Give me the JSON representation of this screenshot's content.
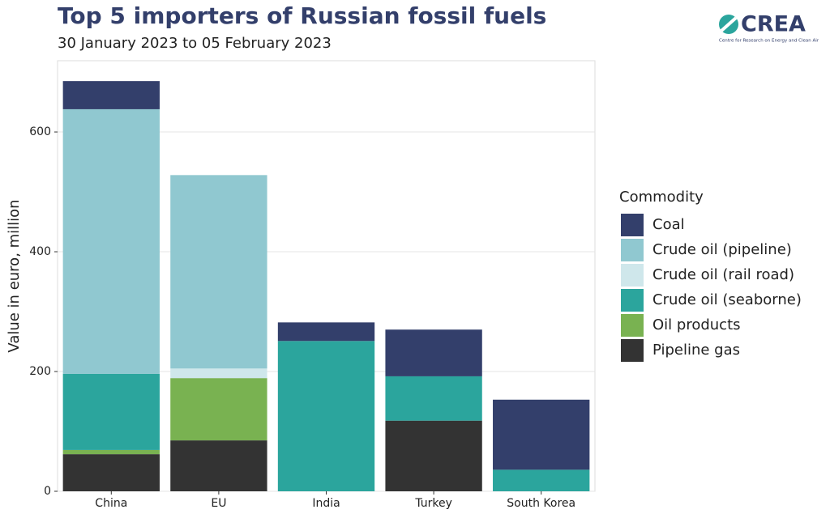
{
  "chart_data": {
    "type": "stacked_bar",
    "title": "Top 5 importers of Russian fossil fuels",
    "subtitle": "30 January 2023 to 05 February 2023",
    "y_label": "Value in euro, million",
    "legend_title": "Commodity",
    "logo": {
      "name": "CREA",
      "tagline": "Centre for Research on Energy and Clean Air"
    },
    "categories": [
      "China",
      "EU",
      "India",
      "Turkey",
      "South Korea"
    ],
    "series": [
      {
        "name": "Coal",
        "color": "#333f6b",
        "values": [
          47,
          0,
          31,
          78,
          117
        ]
      },
      {
        "name": "Crude oil (pipeline)",
        "color": "#90c8d0",
        "values": [
          442,
          323,
          0,
          0,
          0
        ]
      },
      {
        "name": "Crude oil (rail road)",
        "color": "#cfe7eb",
        "values": [
          0,
          16,
          0,
          0,
          0
        ]
      },
      {
        "name": "Crude oil (seaborne)",
        "color": "#2ba59d",
        "values": [
          127,
          0,
          251,
          74,
          36
        ]
      },
      {
        "name": "Oil products",
        "color": "#79b251",
        "values": [
          7,
          104,
          0,
          0,
          0
        ]
      },
      {
        "name": "Pipeline gas",
        "color": "#333333",
        "values": [
          62,
          85,
          0,
          118,
          0
        ]
      }
    ],
    "ylim": [
      0,
      719
    ],
    "yticks": [
      0,
      200,
      400,
      600
    ],
    "grid": true
  }
}
